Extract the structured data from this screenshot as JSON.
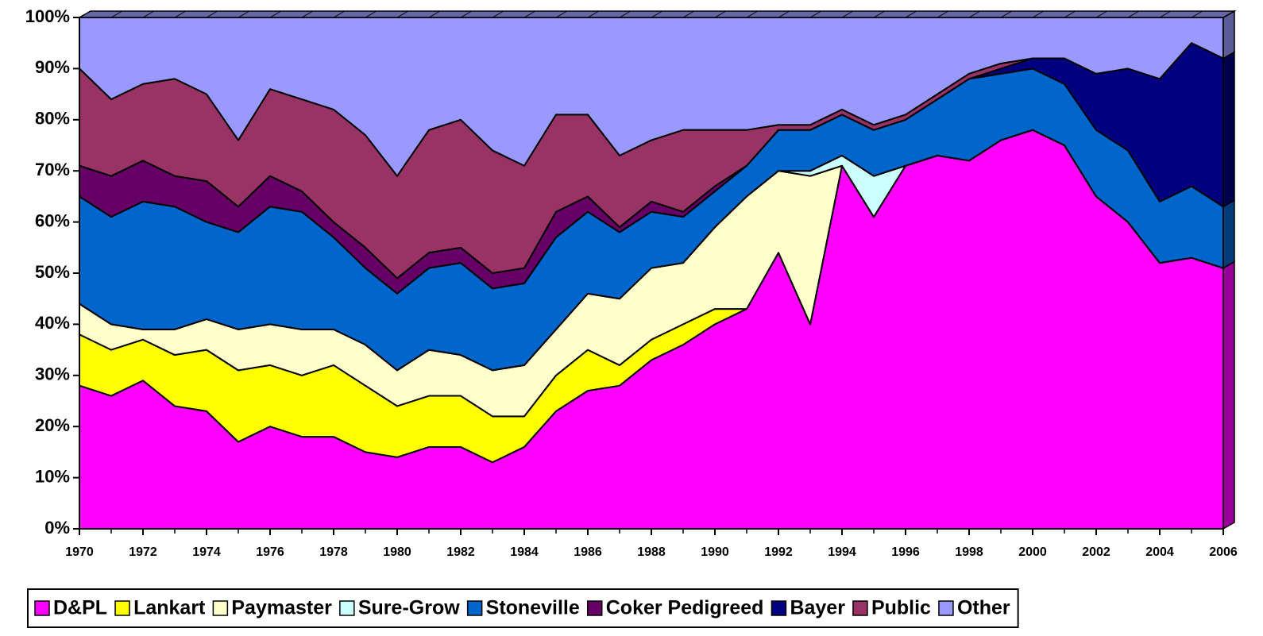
{
  "chart_data": {
    "type": "stacked_area",
    "x": [
      1970,
      1971,
      1972,
      1973,
      1974,
      1975,
      1976,
      1977,
      1978,
      1979,
      1980,
      1981,
      1982,
      1983,
      1984,
      1985,
      1986,
      1987,
      1988,
      1989,
      1990,
      1991,
      1992,
      1993,
      1994,
      1995,
      1996,
      1997,
      1998,
      1999,
      2000,
      2001,
      2002,
      2003,
      2004,
      2005,
      2006
    ],
    "xlim": [
      1970,
      2006
    ],
    "xticks": [
      1970,
      1972,
      1974,
      1976,
      1978,
      1980,
      1982,
      1984,
      1986,
      1988,
      1990,
      1992,
      1994,
      1996,
      1998,
      2000,
      2002,
      2004,
      2006
    ],
    "ylim": [
      0,
      100
    ],
    "yticks": [
      {
        "value": 0,
        "label": "0%"
      },
      {
        "value": 10,
        "label": "10%"
      },
      {
        "value": 20,
        "label": "20%"
      },
      {
        "value": 30,
        "label": "30%"
      },
      {
        "value": 40,
        "label": "40%"
      },
      {
        "value": 50,
        "label": "50%"
      },
      {
        "value": 60,
        "label": "60%"
      },
      {
        "value": 70,
        "label": "70%"
      },
      {
        "value": 80,
        "label": "80%"
      },
      {
        "value": 90,
        "label": "90%"
      },
      {
        "value": 100,
        "label": "100%"
      }
    ],
    "legend": "bottom",
    "series": [
      {
        "name": "D&PL",
        "color": "#ff00ff",
        "values": [
          28,
          26,
          29,
          24,
          23,
          17,
          20,
          18,
          18,
          15,
          14,
          16,
          16,
          13,
          16,
          23,
          27,
          28,
          33,
          36,
          40,
          43,
          54,
          40,
          71,
          61,
          71,
          73,
          72,
          76,
          78,
          75,
          65,
          60,
          52,
          53,
          51
        ]
      },
      {
        "name": "Lankart",
        "color": "#ffff00",
        "values": [
          10,
          9,
          8,
          10,
          12,
          14,
          12,
          12,
          14,
          13,
          10,
          10,
          10,
          9,
          6,
          7,
          8,
          4,
          4,
          4,
          3,
          0,
          0,
          0,
          0,
          0,
          0,
          0,
          0,
          0,
          0,
          0,
          0,
          0,
          0,
          0,
          0
        ]
      },
      {
        "name": "Paymaster",
        "color": "#ffffcc",
        "values": [
          6,
          5,
          2,
          5,
          6,
          8,
          8,
          9,
          7,
          8,
          7,
          9,
          8,
          9,
          10,
          9,
          11,
          13,
          14,
          12,
          16,
          22,
          16,
          29,
          0,
          0,
          0,
          0,
          0,
          0,
          0,
          0,
          0,
          0,
          0,
          0,
          0
        ]
      },
      {
        "name": "Sure-Grow",
        "color": "#ccffff",
        "values": [
          0,
          0,
          0,
          0,
          0,
          0,
          0,
          0,
          0,
          0,
          0,
          0,
          0,
          0,
          0,
          0,
          0,
          0,
          0,
          0,
          0,
          0,
          0,
          1,
          2,
          8,
          0,
          0,
          0,
          0,
          0,
          0,
          0,
          0,
          0,
          0,
          0
        ]
      },
      {
        "name": "Stoneville",
        "color": "#0066cc",
        "values": [
          21,
          21,
          25,
          24,
          19,
          19,
          23,
          23,
          18,
          15,
          15,
          16,
          18,
          16,
          16,
          18,
          16,
          13,
          11,
          9,
          7,
          6,
          8,
          8,
          8,
          9,
          9,
          11,
          16,
          13,
          12,
          12,
          13,
          14,
          12,
          14,
          12
        ]
      },
      {
        "name": "Coker Pedigreed",
        "color": "#660066",
        "values": [
          6,
          8,
          8,
          6,
          8,
          5,
          6,
          4,
          3,
          4,
          3,
          3,
          3,
          3,
          3,
          5,
          3,
          1,
          2,
          1,
          1,
          0,
          0,
          0,
          0,
          0,
          0,
          0,
          0,
          0,
          0,
          0,
          0,
          0,
          0,
          0,
          0
        ]
      },
      {
        "name": "Bayer",
        "color": "#000080",
        "values": [
          0,
          0,
          0,
          0,
          0,
          0,
          0,
          0,
          0,
          0,
          0,
          0,
          0,
          0,
          0,
          0,
          0,
          0,
          0,
          0,
          0,
          0,
          0,
          0,
          0,
          0,
          0,
          0,
          0,
          1,
          2,
          5,
          11,
          16,
          24,
          28,
          29
        ]
      },
      {
        "name": "Public",
        "color": "#993366",
        "values": [
          19,
          15,
          15,
          19,
          17,
          13,
          17,
          18,
          22,
          22,
          20,
          24,
          25,
          24,
          20,
          19,
          16,
          14,
          12,
          16,
          11,
          7,
          1,
          1,
          1,
          1,
          1,
          1,
          1,
          1,
          0,
          0,
          0,
          0,
          0,
          0,
          0
        ]
      },
      {
        "name": "Other",
        "color": "#9999ff",
        "values": [
          10,
          16,
          13,
          12,
          15,
          24,
          14,
          16,
          18,
          23,
          31,
          22,
          20,
          26,
          29,
          19,
          19,
          27,
          24,
          22,
          22,
          22,
          21,
          21,
          18,
          21,
          19,
          15,
          11,
          9,
          8,
          8,
          11,
          10,
          12,
          5,
          8
        ]
      }
    ]
  }
}
